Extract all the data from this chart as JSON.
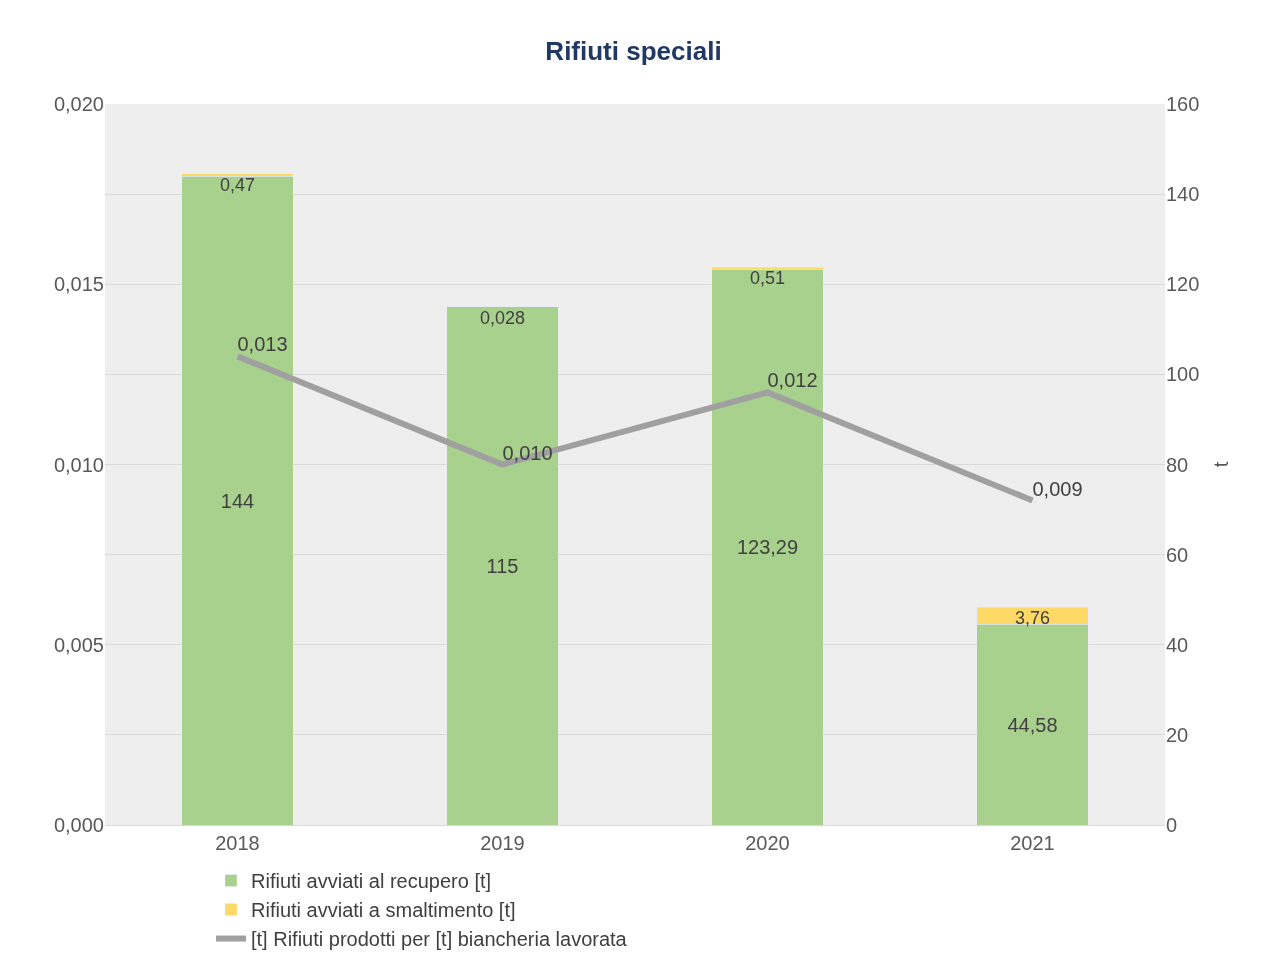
{
  "chart_data": {
    "type": "bar",
    "title": "Rifiuti speciali",
    "y2label": "t",
    "categories": [
      "2018",
      "2019",
      "2020",
      "2021"
    ],
    "stacked": true,
    "series": [
      {
        "name": "Rifiuti avviati al recupero [t]",
        "axis": "y2",
        "color": "#a9d18e",
        "values": [
          144,
          115,
          123.29,
          44.58
        ],
        "value_labels": [
          "144",
          "115",
          "123,29",
          "44,58"
        ]
      },
      {
        "name": "Rifiuti avviati a smaltimento [t]",
        "axis": "y2",
        "color": "#ffd966",
        "values": [
          0.47,
          0.028,
          0.51,
          3.76
        ],
        "value_labels": [
          "0,47",
          "0,028",
          "0,51",
          "3,76"
        ]
      },
      {
        "name": "[t] Rifiuti prodotti per [t] biancheria lavorata",
        "type": "line",
        "axis": "y",
        "color": "#a0a0a0",
        "values": [
          0.013,
          0.01,
          0.012,
          0.009
        ],
        "value_labels": [
          "0,013",
          "0,010",
          "0,012",
          "0,009"
        ]
      }
    ],
    "ylim": [
      0,
      0.02
    ],
    "yticks": [
      {
        "value": 0,
        "label": "0,000"
      },
      {
        "value": 0.005,
        "label": "0,005"
      },
      {
        "value": 0.01,
        "label": "0,010"
      },
      {
        "value": 0.015,
        "label": "0,015"
      },
      {
        "value": 0.02,
        "label": "0,020"
      }
    ],
    "y2lim": [
      0,
      160
    ],
    "y2ticks": [
      0,
      20,
      40,
      60,
      80,
      100,
      120,
      140,
      160
    ],
    "grid": "y2",
    "legend": "bottom",
    "marker": "none",
    "line_style": "solid"
  }
}
